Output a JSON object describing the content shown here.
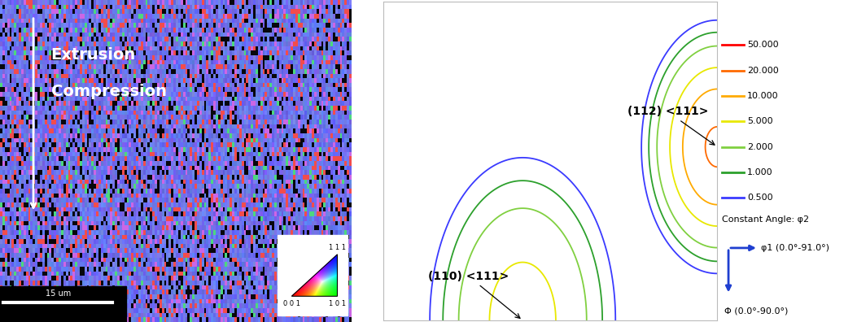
{
  "micrograph": {
    "direction_label": [
      "Extrusion",
      "Compression"
    ],
    "scale_bar": "15 um",
    "ipf_key": {
      "top": "1 1 1",
      "bottom_left": "0 0 1",
      "bottom_right": "1 0 1"
    }
  },
  "chart_data": {
    "type": "contour",
    "xlabel": "φ1 (0.0°-91.0°)",
    "ylabel": "Φ (0.0°-90.0°)",
    "xlim": [
      0,
      91
    ],
    "ylim": [
      90,
      0
    ],
    "tick_labels": false,
    "legend_title": "Constant Angle: φ2",
    "levels": [
      {
        "value": 50,
        "label": "50.000"
      },
      {
        "value": 20,
        "label": "20.000"
      },
      {
        "value": 10,
        "label": "10.000"
      },
      {
        "value": 5,
        "label": "5.000"
      },
      {
        "value": 2,
        "label": "2.000"
      },
      {
        "value": 1,
        "label": "1.000"
      },
      {
        "value": 0.5,
        "label": "0.500"
      }
    ],
    "colors": [
      "#ff0000",
      "#ff6a00",
      "#ffaa00",
      "#e8e800",
      "#80d040",
      "#2ca02c",
      "#3a3aff"
    ],
    "peaks": [
      {
        "name": "(112) <111>",
        "x": 91,
        "y": 41,
        "value": 22,
        "spread_x": 7.5,
        "spread_y": 13
      },
      {
        "name": "(110) <111>",
        "x": 38,
        "y": 90,
        "value": 7,
        "spread_x": 11,
        "spread_y": 20
      }
    ]
  }
}
